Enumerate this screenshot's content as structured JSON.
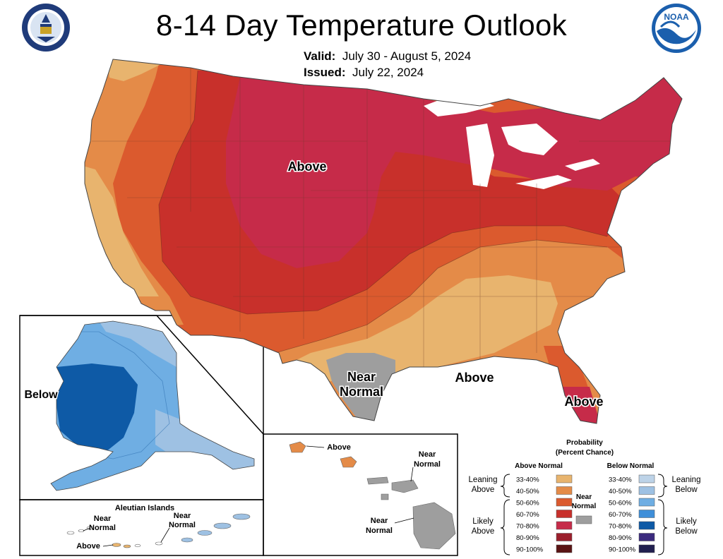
{
  "header": {
    "title": "8-14 Day Temperature Outlook",
    "valid_label": "Valid:",
    "valid_value": "July 30 - August 5, 2024",
    "issued_label": "Issued:",
    "issued_value": "July 22, 2024",
    "logos": [
      "doc-seal-icon",
      "noaa-logo-icon"
    ]
  },
  "map_labels": {
    "conus_above": "Above",
    "texas_near_1": "Near",
    "texas_near_2": "Normal",
    "southeast_above": "Above",
    "florida_above": "Above",
    "alaska_below": "Below"
  },
  "aleutian": {
    "title": "Aleutian Islands",
    "near1_a": "Near",
    "near1_b": "Normal",
    "near2_a": "Near",
    "near2_b": "Normal",
    "above": "Above"
  },
  "hawaii": {
    "above": "Above",
    "near1_a": "Near",
    "near1_b": "Normal",
    "near2_a": "Near",
    "near2_b": "Normal"
  },
  "legend": {
    "title_1": "Probability",
    "title_2": "(Percent Chance)",
    "above_head": "Above Normal",
    "below_head": "Below Normal",
    "near_a": "Near",
    "near_b": "Normal",
    "leaning_above_a": "Leaning",
    "leaning_above_b": "Above",
    "likely_above_a": "Likely",
    "likely_above_b": "Above",
    "leaning_below_a": "Leaning",
    "leaning_below_b": "Below",
    "likely_below_a": "Likely",
    "likely_below_b": "Below",
    "above_bins": [
      {
        "label": "33-40%",
        "color": "#E8B46E"
      },
      {
        "label": "40-50%",
        "color": "#E48B48"
      },
      {
        "label": "50-60%",
        "color": "#DB5A2E"
      },
      {
        "label": "60-70%",
        "color": "#C8302B"
      },
      {
        "label": "70-80%",
        "color": "#C62B49"
      },
      {
        "label": "80-90%",
        "color": "#9B1F2C"
      },
      {
        "label": "90-100%",
        "color": "#5A1414"
      }
    ],
    "below_bins": [
      {
        "label": "33-40%",
        "color": "#BDD3E8"
      },
      {
        "label": "40-50%",
        "color": "#9EC1E3"
      },
      {
        "label": "50-60%",
        "color": "#6FAEE3"
      },
      {
        "label": "60-70%",
        "color": "#3F8FD9"
      },
      {
        "label": "70-80%",
        "color": "#0E5AA6"
      },
      {
        "label": "80-90%",
        "color": "#3B2A7E"
      },
      {
        "label": "90-100%",
        "color": "#211F4F"
      }
    ],
    "near_color": "#9E9E9E"
  }
}
